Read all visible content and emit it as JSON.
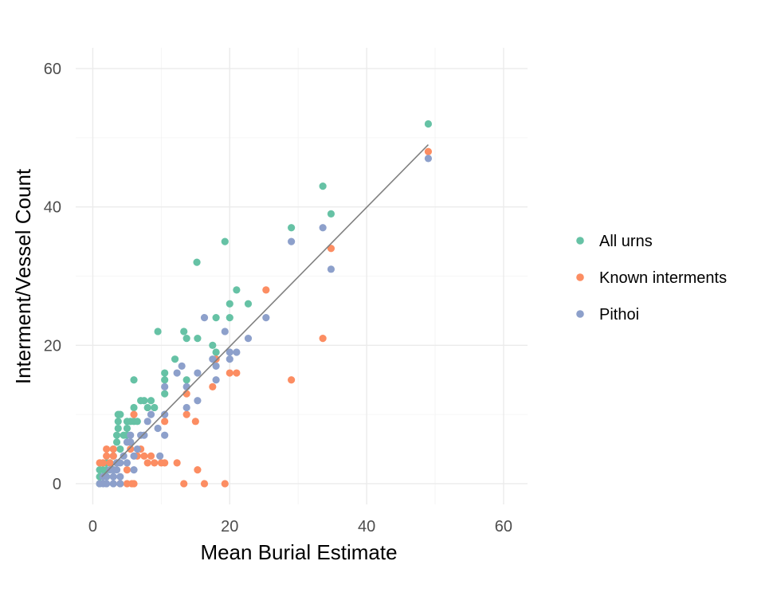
{
  "chart_data": {
    "type": "scatter",
    "title": "",
    "xlabel": "Mean Burial Estimate",
    "ylabel": "Interment/Vessel Count",
    "xlim": [
      -2.5,
      63.5
    ],
    "ylim": [
      -3,
      63
    ],
    "xticks": [
      0,
      20,
      40,
      60
    ],
    "yticks": [
      0,
      20,
      40,
      60
    ],
    "grid": true,
    "legend_position": "right",
    "series": [
      {
        "name": "All urns",
        "color": "#66c2a5",
        "points": [
          [
            1,
            0
          ],
          [
            1,
            1
          ],
          [
            1,
            2
          ],
          [
            1.5,
            2
          ],
          [
            2,
            1
          ],
          [
            2,
            2
          ],
          [
            2,
            3
          ],
          [
            2.5,
            3
          ],
          [
            3,
            2
          ],
          [
            3,
            4
          ],
          [
            3,
            5
          ],
          [
            3.5,
            6
          ],
          [
            3.5,
            7
          ],
          [
            3.7,
            8
          ],
          [
            3.7,
            9
          ],
          [
            3.7,
            10
          ],
          [
            4,
            10
          ],
          [
            4,
            5
          ],
          [
            4.5,
            7
          ],
          [
            5,
            7
          ],
          [
            5,
            8
          ],
          [
            5,
            9
          ],
          [
            5.5,
            9
          ],
          [
            5.5,
            6
          ],
          [
            6,
            9
          ],
          [
            6,
            11
          ],
          [
            6,
            15
          ],
          [
            6.5,
            9
          ],
          [
            7,
            12
          ],
          [
            7.5,
            12
          ],
          [
            8,
            11
          ],
          [
            8.5,
            12
          ],
          [
            9,
            11
          ],
          [
            9.5,
            22
          ],
          [
            10.5,
            13
          ],
          [
            10.5,
            15
          ],
          [
            10.5,
            16
          ],
          [
            12,
            18
          ],
          [
            13.3,
            22
          ],
          [
            13.7,
            15
          ],
          [
            13.7,
            21
          ],
          [
            15.2,
            32
          ],
          [
            15.3,
            21
          ],
          [
            17.5,
            20
          ],
          [
            18,
            24
          ],
          [
            18,
            19
          ],
          [
            19.3,
            35
          ],
          [
            20,
            24
          ],
          [
            20,
            26
          ],
          [
            21,
            28
          ],
          [
            22.7,
            26
          ],
          [
            29,
            37
          ],
          [
            33.6,
            43
          ],
          [
            34.8,
            39
          ],
          [
            49,
            52
          ]
        ]
      },
      {
        "name": "Known interments",
        "color": "#fc8d62",
        "points": [
          [
            1,
            3
          ],
          [
            1.5,
            3
          ],
          [
            2,
            4
          ],
          [
            2,
            5
          ],
          [
            2.5,
            3
          ],
          [
            3,
            5
          ],
          [
            3,
            4
          ],
          [
            3.5,
            3
          ],
          [
            4,
            0
          ],
          [
            5,
            0
          ],
          [
            5,
            2
          ],
          [
            5.5,
            5
          ],
          [
            5.7,
            0
          ],
          [
            6,
            0
          ],
          [
            6,
            10
          ],
          [
            6.5,
            4
          ],
          [
            7,
            5
          ],
          [
            7.5,
            4
          ],
          [
            8,
            3
          ],
          [
            8.5,
            4
          ],
          [
            9,
            3
          ],
          [
            10,
            3
          ],
          [
            10.5,
            9
          ],
          [
            10.5,
            3
          ],
          [
            12.3,
            3
          ],
          [
            13.3,
            0
          ],
          [
            13.7,
            10
          ],
          [
            13.7,
            13
          ],
          [
            15,
            9
          ],
          [
            15.3,
            2
          ],
          [
            16.3,
            0
          ],
          [
            17.5,
            14
          ],
          [
            18,
            18
          ],
          [
            19.3,
            0
          ],
          [
            20,
            16
          ],
          [
            21,
            16
          ],
          [
            25.3,
            28
          ],
          [
            29,
            15
          ],
          [
            33.6,
            21
          ],
          [
            34.8,
            34
          ],
          [
            49,
            48
          ]
        ]
      },
      {
        "name": "Pithoi",
        "color": "#8da0cb",
        "points": [
          [
            1,
            0
          ],
          [
            1.5,
            0
          ],
          [
            1.5,
            1
          ],
          [
            2,
            0
          ],
          [
            2,
            1
          ],
          [
            2.5,
            2
          ],
          [
            3,
            0
          ],
          [
            3,
            1
          ],
          [
            3,
            2
          ],
          [
            3.5,
            3
          ],
          [
            3.5,
            2
          ],
          [
            4,
            0
          ],
          [
            4,
            1
          ],
          [
            4,
            3
          ],
          [
            4.5,
            4
          ],
          [
            5,
            6
          ],
          [
            5,
            3
          ],
          [
            5.5,
            6
          ],
          [
            5.5,
            7
          ],
          [
            6,
            2
          ],
          [
            6,
            4
          ],
          [
            6.5,
            5
          ],
          [
            7,
            7
          ],
          [
            7.5,
            7
          ],
          [
            8,
            9
          ],
          [
            8.5,
            10
          ],
          [
            9.5,
            8
          ],
          [
            9.8,
            4
          ],
          [
            10.5,
            7
          ],
          [
            10.5,
            10
          ],
          [
            10.5,
            14
          ],
          [
            12.3,
            16
          ],
          [
            13,
            17
          ],
          [
            13.7,
            11
          ],
          [
            13.7,
            14
          ],
          [
            15.3,
            12
          ],
          [
            15.3,
            16
          ],
          [
            16.3,
            24
          ],
          [
            17.5,
            18
          ],
          [
            18,
            15
          ],
          [
            18,
            17
          ],
          [
            19.3,
            22
          ],
          [
            20,
            18
          ],
          [
            20,
            19
          ],
          [
            21,
            19
          ],
          [
            22.7,
            21
          ],
          [
            25.3,
            24
          ],
          [
            29,
            35
          ],
          [
            33.6,
            37
          ],
          [
            34.8,
            31
          ],
          [
            49,
            47
          ]
        ]
      }
    ],
    "trendline": {
      "color": "#808080",
      "x": [
        1.3,
        49
      ],
      "y": [
        1,
        49
      ]
    }
  }
}
